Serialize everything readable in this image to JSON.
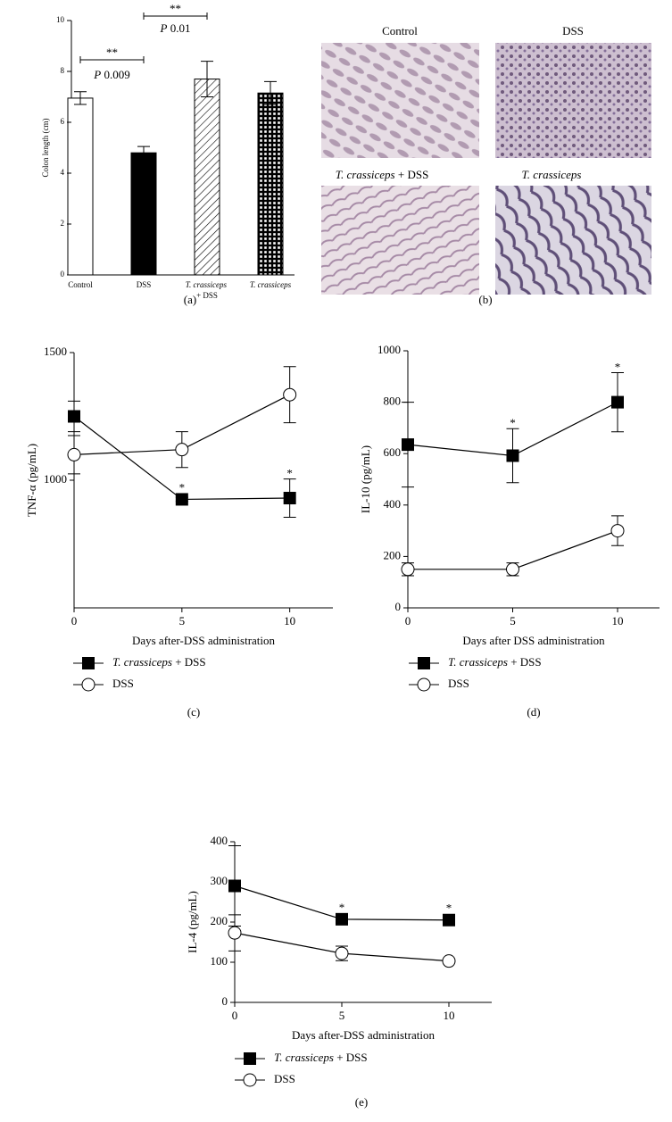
{
  "chart_data": [
    {
      "type": "bar",
      "ylabel": "Colon length (cm)",
      "caption": "(a)",
      "categories": [
        "Control",
        "DSS",
        "T. crassiceps + DSS",
        "T. crassiceps"
      ],
      "values": [
        6.95,
        4.8,
        7.7,
        7.15
      ],
      "errors": [
        0.25,
        0.25,
        0.7,
        0.45
      ],
      "fills": [
        "#ffffff",
        "#000000",
        "hatch",
        "checker"
      ],
      "ylim": [
        0,
        10
      ],
      "yticks": [
        0,
        2,
        4,
        6,
        8,
        10
      ],
      "annotations": [
        {
          "text": "**",
          "label": "P 0.009",
          "from": 0,
          "to": 1
        },
        {
          "text": "**",
          "label": "P 0.01",
          "from": 1,
          "to": 2
        }
      ]
    },
    {
      "type": "line",
      "ylabel": "TNF-α (pg/mL)",
      "xlabel": "Days after-DSS administration",
      "caption": "(c)",
      "x": [
        0,
        5,
        10
      ],
      "xlim": [
        0,
        12
      ],
      "xticks": [
        0,
        5,
        10
      ],
      "ylim": [
        500,
        1500
      ],
      "yticks": [
        1000,
        1500
      ],
      "series": [
        {
          "name": "T. crassiceps + DSS",
          "marker": "square",
          "color": "#000000",
          "values": [
            1250,
            925,
            930
          ],
          "errors": [
            60,
            8,
            75
          ],
          "markers": [
            null,
            "*",
            "*"
          ]
        },
        {
          "name": "DSS",
          "marker": "circle",
          "color": "#000000",
          "values": [
            1100,
            1120,
            1335
          ],
          "errors": [
            75,
            70,
            110
          ],
          "markers": [
            null,
            null,
            null
          ]
        }
      ]
    },
    {
      "type": "line",
      "ylabel": "IL-10 (pg/mL)",
      "xlabel": "Days after DSS administration",
      "caption": "(d)",
      "x": [
        0,
        5,
        10
      ],
      "xlim": [
        0,
        12
      ],
      "xticks": [
        0,
        5,
        10
      ],
      "ylim": [
        0,
        1000
      ],
      "yticks": [
        0,
        200,
        400,
        600,
        800,
        1000
      ],
      "series": [
        {
          "name": "T. crassiceps + DSS",
          "marker": "square",
          "color": "#000000",
          "values": [
            635,
            592,
            800
          ],
          "errors": [
            165,
            105,
            115
          ],
          "markers": [
            null,
            "*",
            "*"
          ]
        },
        {
          "name": "DSS",
          "marker": "circle",
          "color": "#000000",
          "values": [
            150,
            150,
            300
          ],
          "errors": [
            25,
            25,
            58
          ],
          "markers": [
            null,
            null,
            null
          ]
        }
      ]
    },
    {
      "type": "line",
      "ylabel": "IL-4 (pg/mL)",
      "xlabel": "Days after-DSS administration",
      "caption": "(e)",
      "x": [
        0,
        5,
        10
      ],
      "xlim": [
        0,
        12
      ],
      "xticks": [
        0,
        5,
        10
      ],
      "ylim": [
        0,
        400
      ],
      "yticks": [
        0,
        100,
        200,
        300,
        400
      ],
      "series": [
        {
          "name": "T. crassiceps + DSS",
          "marker": "square",
          "color": "#000000",
          "values": [
            290,
            207,
            205
          ],
          "errors": [
            100,
            5,
            4
          ],
          "markers": [
            null,
            "*",
            "*"
          ]
        },
        {
          "name": "DSS",
          "marker": "circle",
          "color": "#000000",
          "values": [
            173,
            122,
            103
          ],
          "errors": [
            45,
            18,
            3
          ],
          "markers": [
            null,
            null,
            null
          ]
        }
      ]
    }
  ],
  "histology": {
    "labels": [
      "Control",
      "DSS",
      "T. crassiceps + DSS",
      "T. crassiceps"
    ],
    "caption": "(b)"
  }
}
